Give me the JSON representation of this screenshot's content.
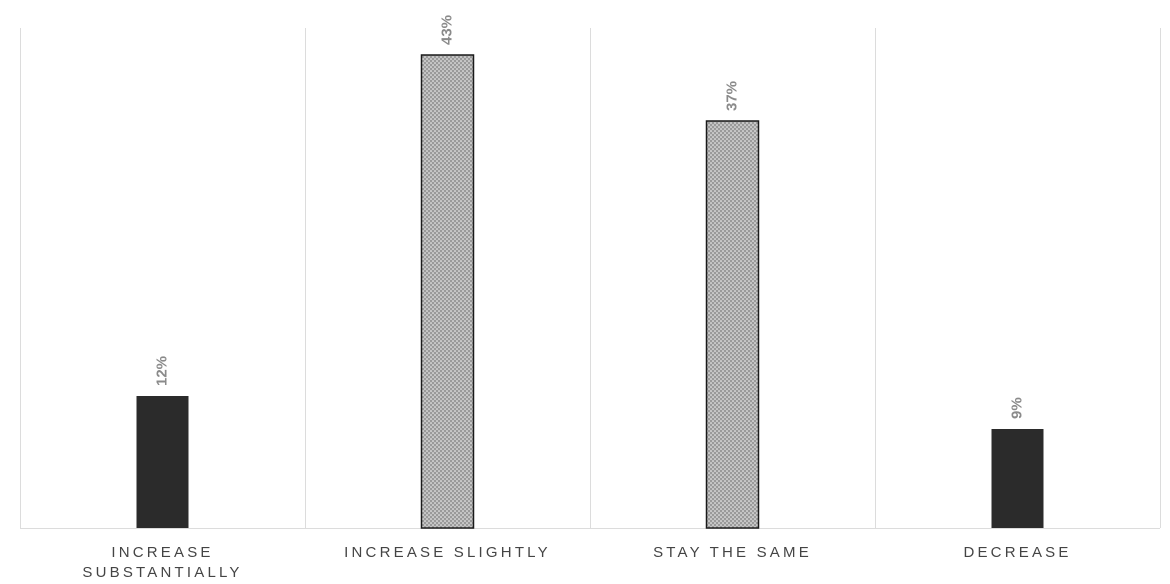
{
  "chart_data": {
    "type": "bar",
    "title": "",
    "xlabel": "",
    "ylabel": "",
    "categories": [
      [
        "INCREASE",
        "SUBSTANTIALLY"
      ],
      [
        "INCREASE SLIGHTLY"
      ],
      [
        "STAY THE SAME"
      ],
      [
        "DECREASE"
      ]
    ],
    "values": [
      12,
      43,
      37,
      9
    ],
    "data_labels": [
      "12%",
      "43%",
      "37%",
      "9%"
    ],
    "value_unit": "%",
    "ylim": [
      0,
      45
    ],
    "grid": "vertical separators between categories",
    "legend": "none",
    "bar_styles": [
      "solid",
      "dotted",
      "dotted",
      "solid"
    ],
    "colors": {
      "solid_fill": "#2b2b2b",
      "dotted_fill": "#9a9a9a",
      "dot_color": "#ffffff",
      "bar_outline": "#1a1a1a",
      "gridline": "#dcdcdc",
      "data_label": "#8a8a8a",
      "category_label": "#444444"
    }
  }
}
